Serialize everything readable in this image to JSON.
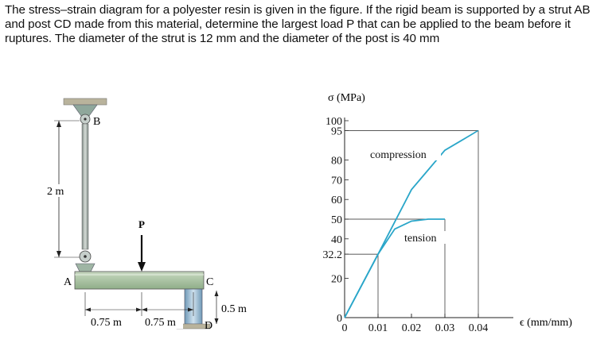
{
  "problem": {
    "text": "The stress–strain diagram for a polyester resin is given in the figure. If the rigid beam is supported by a strut AB and post CD made from this material, determine the largest load P that can be applied to the beam before it ruptures. The diameter of the strut is 12 mm and the diameter of the post is 40 mm"
  },
  "structure": {
    "label_B": "B",
    "label_A": "A",
    "label_C": "C",
    "label_D": "D",
    "label_P": "P",
    "dim_height": "2 m",
    "dim_span1": "0.75 m",
    "dim_span2": "0.75 m",
    "dim_post": "0.5 m"
  },
  "chart_data": {
    "type": "line",
    "ylabel": "σ (MPa)",
    "xlabel": "ϵ (mm/mm)",
    "x_ticks": [
      "0",
      "0.01",
      "0.02",
      "0.03",
      "0.04"
    ],
    "y_ticks": [
      "0",
      "20",
      "32.2",
      "40",
      "50",
      "60",
      "70",
      "80",
      "95",
      "100"
    ],
    "xlim": [
      0,
      0.045
    ],
    "ylim": [
      0,
      100
    ],
    "series": [
      {
        "name": "compression",
        "x": [
          0,
          0.01,
          0.02,
          0.03,
          0.04
        ],
        "y": [
          0,
          32.2,
          65,
          85,
          95
        ]
      },
      {
        "name": "tension",
        "x": [
          0,
          0.01,
          0.015,
          0.02,
          0.025,
          0.03
        ],
        "y": [
          0,
          32.2,
          45,
          49,
          50,
          50
        ]
      }
    ],
    "color": "#2aa6c9"
  }
}
